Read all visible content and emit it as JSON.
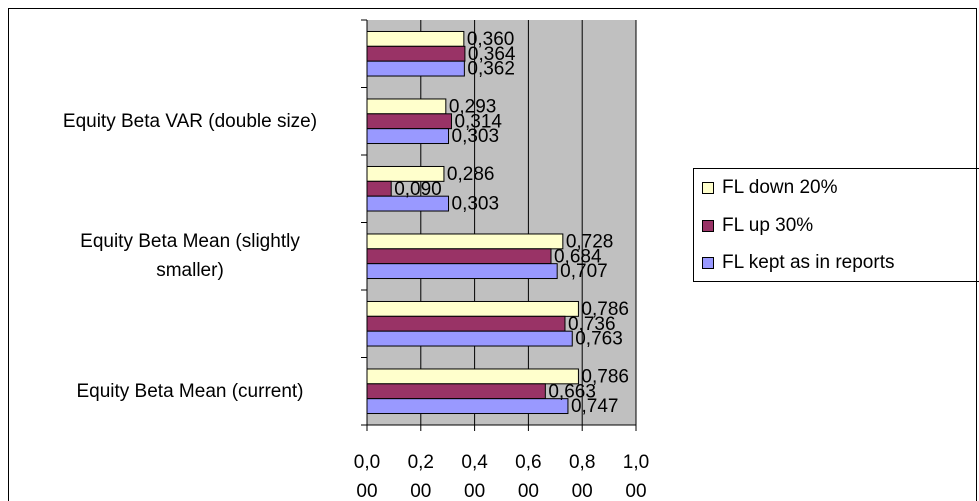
{
  "chart_data": {
    "type": "bar",
    "orientation": "horizontal",
    "categories": [
      null,
      "Equity Beta VAR (double size)",
      null,
      "Equity Beta Mean (slightly smaller)",
      null,
      "Equity Beta Mean (current)"
    ],
    "series": [
      {
        "name": "FL down 20%",
        "color": "#ffffcc",
        "values": [
          0.36,
          0.293,
          0.286,
          0.728,
          0.786,
          0.786
        ],
        "value_labels": [
          "0,360",
          "0,293",
          "0,286",
          "0,728",
          "0,786",
          "0,786"
        ]
      },
      {
        "name": "FL up 30%",
        "color": "#993366",
        "values": [
          0.364,
          0.314,
          0.09,
          0.684,
          0.736,
          0.663
        ],
        "value_labels": [
          "0,364",
          "0,314",
          "0,090",
          "0,684",
          "0,736",
          "0,663"
        ]
      },
      {
        "name": "FL kept as in reports",
        "color": "#9999ff",
        "values": [
          0.362,
          0.303,
          0.303,
          0.707,
          0.763,
          0.747
        ],
        "value_labels": [
          "0,362",
          "0,303",
          "0,303",
          "0,707",
          "0,763",
          "0,747"
        ]
      }
    ],
    "xlim": [
      0,
      1
    ],
    "xticks": [
      {
        "value": 0,
        "label": "0,000"
      },
      {
        "value": 0.2,
        "label": "0,200"
      },
      {
        "value": 0.4,
        "label": "0,400"
      },
      {
        "value": 0.6,
        "label": "0,600"
      },
      {
        "value": 0.8,
        "label": "0,800"
      },
      {
        "value": 1,
        "label": "1,000"
      }
    ],
    "grid": true,
    "legend": "right",
    "plot_background": "#c0c0c0"
  }
}
